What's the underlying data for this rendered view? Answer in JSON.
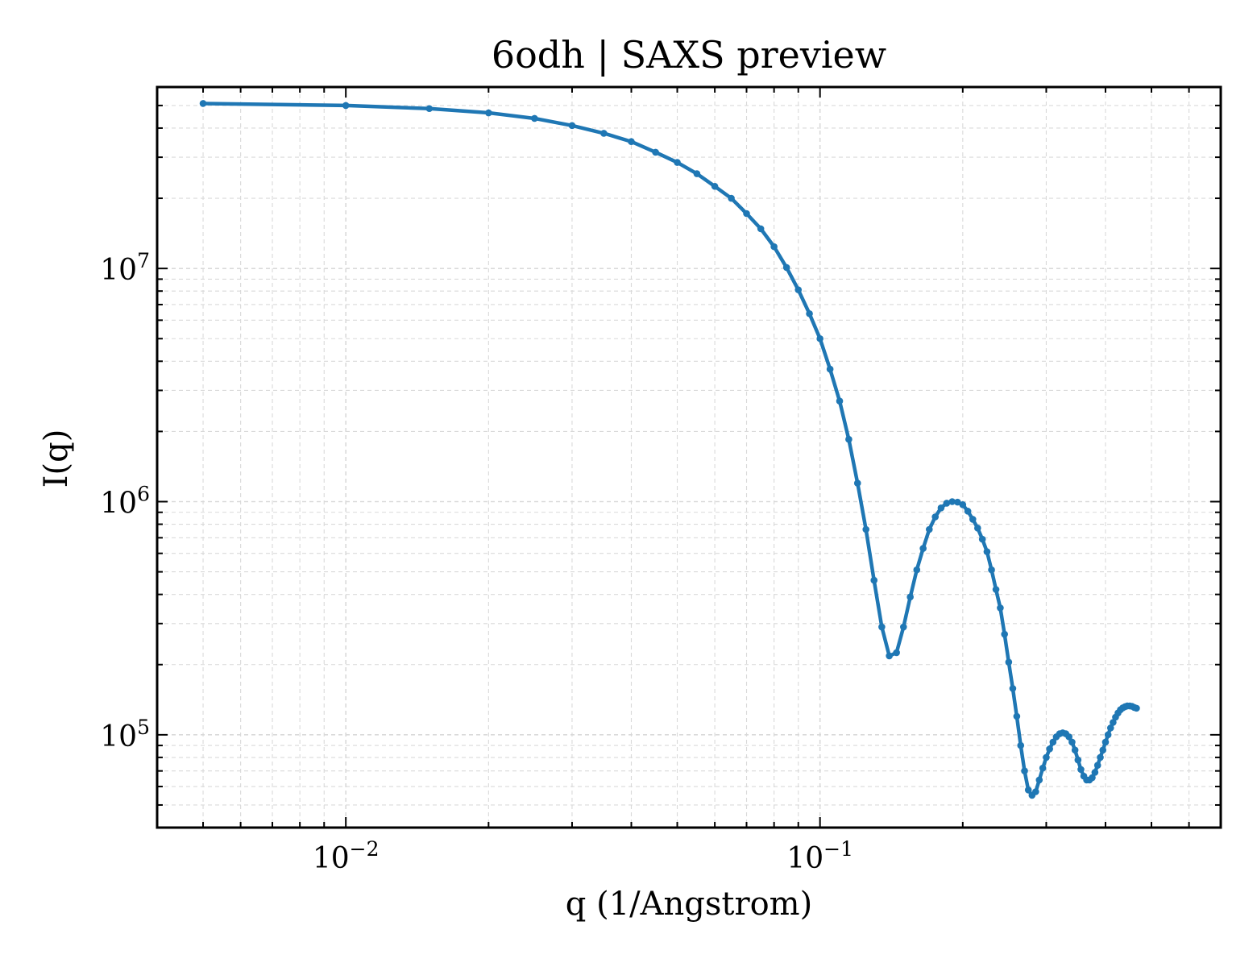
{
  "chart_data": {
    "type": "line",
    "title": "6odh | SAXS preview",
    "xlabel": "q (1/Angstrom)",
    "ylabel": "I(q)",
    "x_scale": "log",
    "y_scale": "log",
    "xlim": [
      0.004,
      0.7
    ],
    "ylim": [
      40000,
      60000000
    ],
    "x_ticks": [
      {
        "value": 0.01,
        "base": "10",
        "exp": "−2"
      },
      {
        "value": 0.1,
        "base": "10",
        "exp": "−1"
      }
    ],
    "y_ticks": [
      {
        "value": 100000,
        "base": "10",
        "exp": "5"
      },
      {
        "value": 1000000,
        "base": "10",
        "exp": "6"
      },
      {
        "value": 10000000,
        "base": "10",
        "exp": "7"
      }
    ],
    "grid": true,
    "legend": "none",
    "colors": {
      "line": "#1f77b4"
    },
    "series": [
      {
        "points": [
          [
            0.005,
            51000000
          ],
          [
            0.01,
            50000000
          ],
          [
            0.015,
            48500000
          ],
          [
            0.02,
            46500000
          ],
          [
            0.025,
            44000000
          ],
          [
            0.03,
            41000000
          ],
          [
            0.035,
            38000000
          ],
          [
            0.04,
            35000000
          ],
          [
            0.045,
            31500000
          ],
          [
            0.05,
            28500000
          ],
          [
            0.055,
            25500000
          ],
          [
            0.06,
            22500000
          ],
          [
            0.065,
            20000000
          ],
          [
            0.07,
            17200000
          ],
          [
            0.075,
            14800000
          ],
          [
            0.08,
            12400000
          ],
          [
            0.085,
            10100000
          ],
          [
            0.09,
            8100000
          ],
          [
            0.095,
            6400000
          ],
          [
            0.1,
            5000000
          ],
          [
            0.105,
            3700000
          ],
          [
            0.11,
            2700000
          ],
          [
            0.115,
            1850000
          ],
          [
            0.12,
            1200000
          ],
          [
            0.125,
            760000
          ],
          [
            0.13,
            460000
          ],
          [
            0.135,
            290000
          ],
          [
            0.14,
            218000
          ],
          [
            0.145,
            225000
          ],
          [
            0.15,
            290000
          ],
          [
            0.155,
            390000
          ],
          [
            0.16,
            510000
          ],
          [
            0.165,
            630000
          ],
          [
            0.17,
            760000
          ],
          [
            0.175,
            860000
          ],
          [
            0.18,
            940000
          ],
          [
            0.185,
            985000
          ],
          [
            0.19,
            1000000
          ],
          [
            0.195,
            995000
          ],
          [
            0.2,
            970000
          ],
          [
            0.205,
            910000
          ],
          [
            0.21,
            840000
          ],
          [
            0.215,
            770000
          ],
          [
            0.22,
            690000
          ],
          [
            0.225,
            610000
          ],
          [
            0.23,
            510000
          ],
          [
            0.235,
            420000
          ],
          [
            0.24,
            350000
          ],
          [
            0.245,
            270000
          ],
          [
            0.25,
            205000
          ],
          [
            0.255,
            158000
          ],
          [
            0.26,
            120000
          ],
          [
            0.265,
            90000
          ],
          [
            0.27,
            70000
          ],
          [
            0.275,
            58000
          ],
          [
            0.28,
            55000
          ],
          [
            0.285,
            57000
          ],
          [
            0.29,
            64000
          ],
          [
            0.295,
            72000
          ],
          [
            0.3,
            80000
          ],
          [
            0.305,
            87000
          ],
          [
            0.31,
            93000
          ],
          [
            0.315,
            98000
          ],
          [
            0.32,
            101000
          ],
          [
            0.325,
            102000
          ],
          [
            0.33,
            101000
          ],
          [
            0.335,
            98000
          ],
          [
            0.34,
            93000
          ],
          [
            0.345,
            86000
          ],
          [
            0.35,
            78000
          ],
          [
            0.355,
            71000
          ],
          [
            0.36,
            66500
          ],
          [
            0.365,
            64000
          ],
          [
            0.37,
            64000
          ],
          [
            0.375,
            65500
          ],
          [
            0.38,
            69000
          ],
          [
            0.385,
            74000
          ],
          [
            0.39,
            80000
          ],
          [
            0.395,
            86000
          ],
          [
            0.4,
            93000
          ],
          [
            0.405,
            100000
          ],
          [
            0.41,
            107000
          ],
          [
            0.415,
            113000
          ],
          [
            0.42,
            119000
          ],
          [
            0.425,
            124000
          ],
          [
            0.43,
            128000
          ],
          [
            0.435,
            130500
          ],
          [
            0.44,
            132000
          ],
          [
            0.445,
            133000
          ],
          [
            0.45,
            133000
          ],
          [
            0.455,
            132500
          ],
          [
            0.46,
            131000
          ],
          [
            0.465,
            130000
          ]
        ]
      }
    ]
  }
}
